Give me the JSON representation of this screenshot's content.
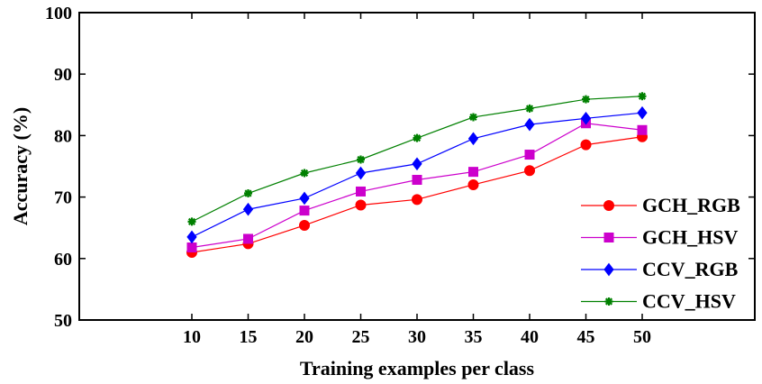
{
  "chart_data": {
    "type": "line",
    "xlabel": "Training examples per class",
    "ylabel": "Accuracy (%)",
    "x": [
      10,
      15,
      20,
      25,
      30,
      35,
      40,
      45,
      50
    ],
    "xlim": [
      0,
      60
    ],
    "ylim": [
      50,
      100
    ],
    "xticks": [
      10,
      15,
      20,
      25,
      30,
      35,
      40,
      45,
      50
    ],
    "yticks": [
      50,
      60,
      70,
      80,
      90,
      100
    ],
    "grid": false,
    "legend_position": "lower-right",
    "series": [
      {
        "name": "GCH_RGB",
        "color": "#ff0000",
        "marker": "circle",
        "values": [
          61.0,
          62.4,
          65.4,
          68.7,
          69.6,
          72.0,
          74.3,
          78.5,
          79.8
        ]
      },
      {
        "name": "GCH_HSV",
        "color": "#cc00cc",
        "marker": "square",
        "values": [
          61.8,
          63.2,
          67.8,
          70.9,
          72.8,
          74.1,
          76.9,
          82.0,
          80.9
        ]
      },
      {
        "name": "CCV_RGB",
        "color": "#0000ff",
        "marker": "diamond",
        "values": [
          63.5,
          68.0,
          69.8,
          73.9,
          75.4,
          79.5,
          81.8,
          82.8,
          83.7
        ]
      },
      {
        "name": "CCV_HSV",
        "color": "#008000",
        "marker": "star",
        "values": [
          66.0,
          70.6,
          73.9,
          76.1,
          79.6,
          83.0,
          84.4,
          85.9,
          86.4
        ]
      }
    ]
  }
}
